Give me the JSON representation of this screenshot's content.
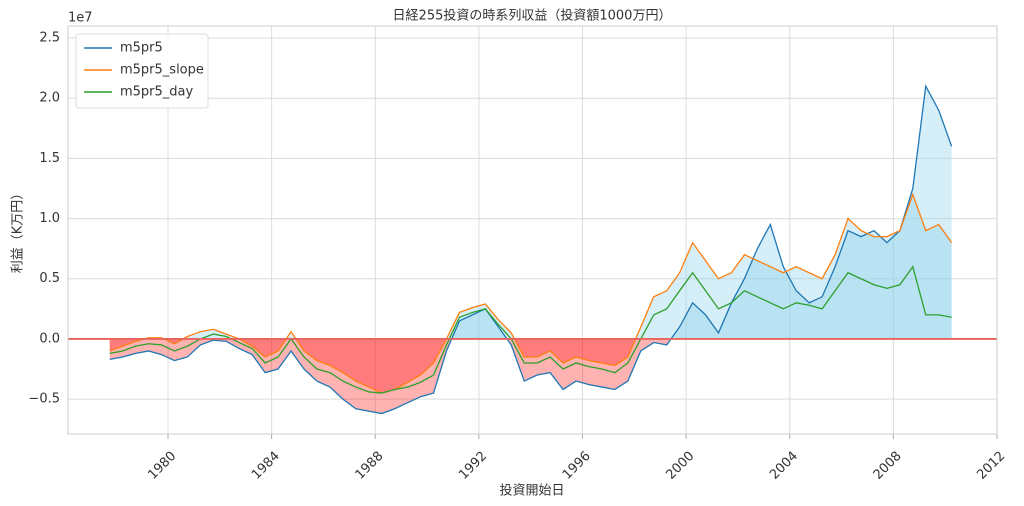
{
  "chart_data": {
    "type": "line",
    "title": "日経255投資の時系列収益（投資額1000万円）",
    "xlabel": "投資開始日",
    "ylabel": "利益（K万円）",
    "y_offset_label": "1e7",
    "xlim": [
      1976.14,
      2012
    ],
    "xticks": [
      1980,
      1984,
      1988,
      1992,
      1996,
      2000,
      2004,
      2008,
      2012
    ],
    "ylim": [
      -0.79,
      2.6
    ],
    "yticks": [
      {
        "value": -0.5,
        "label": "−0.5"
      },
      {
        "value": 0,
        "label": "0.0"
      },
      0.5,
      {
        "value": 1,
        "label": "1.0"
      },
      1.5,
      {
        "value": 2,
        "label": "2.0"
      },
      2.5
    ],
    "grid": true,
    "legend": "upper left",
    "hline": {
      "value": 0,
      "color": "#e8635c"
    },
    "fill_positive_color": "#87ceeb",
    "fill_negative_color": "#ff0000",
    "x": [
      1977.75,
      1978.25,
      1978.75,
      1979.25,
      1979.75,
      1980.25,
      1980.75,
      1981.25,
      1981.75,
      1982.25,
      1982.75,
      1983.25,
      1983.75,
      1984.25,
      1984.75,
      1985.25,
      1985.75,
      1986.25,
      1986.75,
      1987.25,
      1987.75,
      1988.25,
      1988.75,
      1989.25,
      1989.75,
      1990.25,
      1990.75,
      1991.25,
      1991.75,
      1992.25,
      1992.75,
      1993.25,
      1993.75,
      1994.25,
      1994.75,
      1995.25,
      1995.75,
      1996.25,
      1996.75,
      1997.25,
      1997.75,
      1998.25,
      1998.75,
      1999.25,
      1999.75,
      2000.25,
      2000.75,
      2001.25,
      2001.75,
      2002.25,
      2002.75,
      2003.25,
      2003.75,
      2004.25,
      2004.75,
      2005.25,
      2005.75,
      2006.25,
      2006.75,
      2007.25,
      2007.75,
      2008.25,
      2008.75,
      2009.25,
      2009.75,
      2010.25
    ],
    "series": [
      {
        "name": "m5pr5",
        "color": "#1f77b4",
        "fill": true,
        "values": [
          -0.17,
          -0.15,
          -0.12,
          -0.1,
          -0.13,
          -0.18,
          -0.15,
          -0.05,
          -0.01,
          -0.02,
          -0.08,
          -0.13,
          -0.28,
          -0.25,
          -0.1,
          -0.25,
          -0.35,
          -0.4,
          -0.5,
          -0.58,
          -0.6,
          -0.62,
          -0.58,
          -0.53,
          -0.48,
          -0.45,
          -0.1,
          0.15,
          0.2,
          0.25,
          0.1,
          -0.05,
          -0.35,
          -0.3,
          -0.28,
          -0.42,
          -0.35,
          -0.38,
          -0.4,
          -0.42,
          -0.35,
          -0.1,
          -0.03,
          -0.05,
          0.1,
          0.3,
          0.2,
          0.05,
          0.3,
          0.5,
          0.75,
          0.95,
          0.6,
          0.4,
          0.3,
          0.35,
          0.6,
          0.9,
          0.85,
          0.9,
          0.8,
          0.9,
          1.25,
          2.1,
          1.9,
          1.6
        ]
      },
      {
        "name": "m5pr5_slope",
        "color": "#ff7f0e",
        "fill": true,
        "values": [
          -0.1,
          -0.06,
          -0.02,
          0.01,
          0.01,
          -0.04,
          0.02,
          0.06,
          0.08,
          0.04,
          0,
          -0.06,
          -0.15,
          -0.1,
          0.06,
          -0.1,
          -0.18,
          -0.22,
          -0.28,
          -0.35,
          -0.4,
          -0.45,
          -0.42,
          -0.36,
          -0.3,
          -0.2,
          0,
          0.22,
          0.26,
          0.29,
          0.16,
          0.05,
          -0.15,
          -0.15,
          -0.1,
          -0.2,
          -0.15,
          -0.18,
          -0.2,
          -0.22,
          -0.15,
          0.1,
          0.35,
          0.4,
          0.55,
          0.8,
          0.65,
          0.5,
          0.55,
          0.7,
          0.65,
          0.6,
          0.55,
          0.6,
          0.55,
          0.5,
          0.7,
          1.0,
          0.9,
          0.85,
          0.85,
          0.9,
          1.2,
          0.9,
          0.95,
          0.8
        ]
      },
      {
        "name": "m5pr5_day",
        "color": "#2ca02c",
        "fill": false,
        "values": [
          -0.12,
          -0.1,
          -0.06,
          -0.04,
          -0.05,
          -0.1,
          -0.06,
          0,
          0.04,
          0.02,
          -0.03,
          -0.08,
          -0.2,
          -0.15,
          0,
          -0.15,
          -0.25,
          -0.28,
          -0.35,
          -0.4,
          -0.44,
          -0.45,
          -0.42,
          -0.4,
          -0.36,
          -0.3,
          -0.05,
          0.18,
          0.22,
          0.25,
          0.12,
          0,
          -0.2,
          -0.2,
          -0.15,
          -0.25,
          -0.2,
          -0.23,
          -0.25,
          -0.28,
          -0.2,
          0,
          0.2,
          0.25,
          0.4,
          0.55,
          0.4,
          0.25,
          0.3,
          0.4,
          0.35,
          0.3,
          0.25,
          0.3,
          0.28,
          0.25,
          0.4,
          0.55,
          0.5,
          0.45,
          0.42,
          0.45,
          0.6,
          0.2,
          0.2,
          0.18
        ]
      }
    ]
  }
}
